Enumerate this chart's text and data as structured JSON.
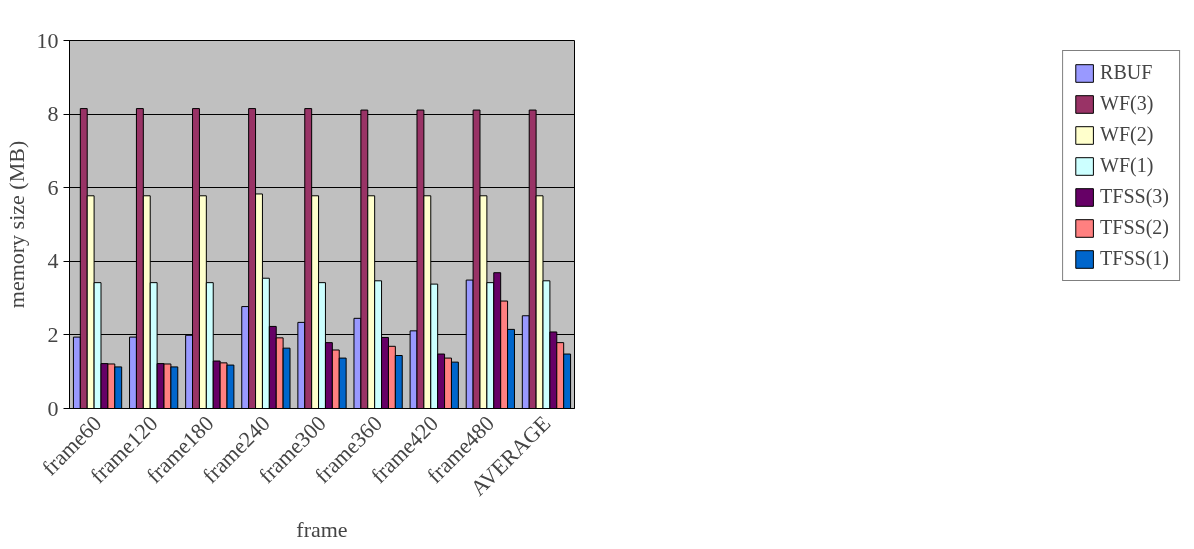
{
  "chart_data": {
    "type": "bar",
    "xlabel": "frame",
    "ylabel": "memory size (MB)",
    "categories": [
      "frame60",
      "frame120",
      "frame180",
      "frame240",
      "frame300",
      "frame360",
      "frame420",
      "frame480",
      "AVERAGE"
    ],
    "series": [
      {
        "name": "RBUF",
        "color": "#9999ff",
        "values": [
          1.94,
          1.94,
          1.99,
          2.77,
          2.34,
          2.45,
          2.11,
          3.49,
          2.52
        ]
      },
      {
        "name": "WF(3)",
        "color": "#993366",
        "values": [
          8.15,
          8.15,
          8.15,
          8.15,
          8.15,
          8.11,
          8.11,
          8.11,
          8.11
        ]
      },
      {
        "name": "WF(2)",
        "color": "#ffffcc",
        "values": [
          5.78,
          5.78,
          5.78,
          5.83,
          5.78,
          5.78,
          5.78,
          5.78,
          5.78
        ]
      },
      {
        "name": "WF(1)",
        "color": "#ccffff",
        "values": [
          3.42,
          3.42,
          3.42,
          3.54,
          3.42,
          3.47,
          3.38,
          3.42,
          3.47
        ]
      },
      {
        "name": "TFSS(3)",
        "color": "#660066",
        "values": [
          1.22,
          1.22,
          1.29,
          2.23,
          1.79,
          1.93,
          1.48,
          3.69,
          2.08
        ]
      },
      {
        "name": "TFSS(2)",
        "color": "#ff8080",
        "values": [
          1.21,
          1.21,
          1.24,
          1.92,
          1.59,
          1.69,
          1.37,
          2.92,
          1.79
        ]
      },
      {
        "name": "TFSS(1)",
        "color": "#0066cc",
        "values": [
          1.13,
          1.13,
          1.18,
          1.64,
          1.37,
          1.44,
          1.26,
          2.15,
          1.48
        ]
      }
    ],
    "ylim": [
      0,
      10
    ],
    "yticks": [
      0,
      2,
      4,
      6,
      8,
      10
    ],
    "grid": "y",
    "legend": "right"
  }
}
